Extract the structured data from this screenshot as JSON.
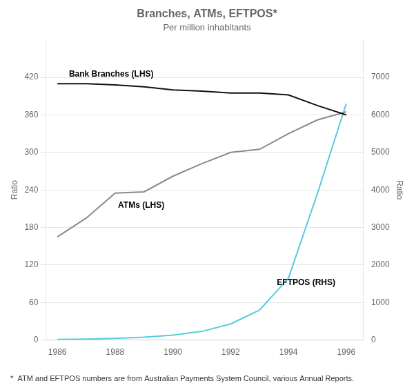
{
  "chart_data": {
    "type": "line",
    "title": "Branches, ATMs, EFTPOS*",
    "subtitle": "Per million inhabitants",
    "ylabel": "Ratio",
    "y2label": "Ratio",
    "x": [
      1986,
      1987,
      1988,
      1989,
      1990,
      1991,
      1992,
      1993,
      1994,
      1995,
      1996
    ],
    "series": [
      {
        "name": "Bank Branches",
        "color": "#111111",
        "values": [
          410,
          410,
          408,
          405,
          400,
          398,
          395,
          395,
          392,
          375,
          360
        ]
      },
      {
        "name": "ATMs",
        "color": "#8a8a8a",
        "values": [
          165,
          195,
          235,
          237,
          262,
          282,
          300,
          305,
          330,
          352,
          365
        ]
      },
      {
        "name": "EFTPOS",
        "color": "#55ccdd",
        "axis": "y2",
        "values": [
          15,
          25,
          45,
          75,
          130,
          230,
          430,
          800,
          1650,
          3900,
          6300
        ]
      }
    ],
    "xlim": [
      1985.6,
      1996.6
    ],
    "xticks": [
      1986,
      1988,
      1990,
      1992,
      1994,
      1996
    ],
    "ylim": [
      0,
      480
    ],
    "yticks": [
      0,
      60,
      120,
      180,
      240,
      300,
      360,
      420
    ],
    "y2lim": [
      0,
      8000
    ],
    "y2ticks": [
      0,
      1000,
      2000,
      3000,
      4000,
      5000,
      6000,
      7000
    ],
    "grid": true,
    "annotations": [
      {
        "text": "Bank Branches (LHS)",
        "x": 1986.4,
        "y": 418
      },
      {
        "text": "ATMs (LHS)",
        "x": 1988.1,
        "y": 208
      },
      {
        "text": "EFTPOS (RHS)",
        "x": 1993.6,
        "y": 85
      }
    ],
    "footnote": "*  ATM and EFTPOS numbers are from Australian Payments System Council, various Annual Reports."
  }
}
